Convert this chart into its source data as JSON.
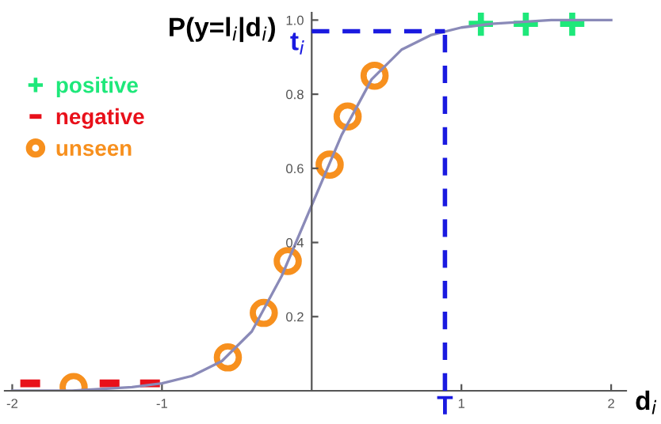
{
  "chart_data": {
    "type": "scatter",
    "ylabel": "P(y=l$_{i}$|d$_{i}$)",
    "xlabel": "d$_{i}$",
    "xlim": [
      -2.05,
      2.1
    ],
    "ylim": [
      0,
      1.02
    ],
    "xticks": [
      -2,
      -1,
      1,
      2
    ],
    "yticks": [
      0.2,
      0.4,
      0.6,
      0.8,
      {
        "value": 1.0,
        "label": "1.0"
      }
    ],
    "grid": false,
    "legend": "left",
    "series": [
      {
        "type": "line",
        "color": "#8a8ab8",
        "marker": "none",
        "x": [
          -2.0,
          -1.6,
          -1.2,
          -1.0,
          -0.8,
          -0.6,
          -0.4,
          -0.2,
          0.0,
          0.2,
          0.4,
          0.6,
          0.8,
          1.0,
          1.2,
          1.6,
          2.0
        ],
        "values": [
          0.0,
          0.0,
          0.01,
          0.02,
          0.04,
          0.08,
          0.16,
          0.31,
          0.5,
          0.69,
          0.84,
          0.92,
          0.96,
          0.98,
          0.99,
          1.0,
          1.0
        ]
      },
      {
        "name": "positive",
        "color": "#1ee87a",
        "marker": "cross",
        "x": [
          1.13,
          1.43,
          1.74
        ],
        "values": [
          0.99,
          0.99,
          0.99
        ]
      },
      {
        "name": "negative",
        "color": "#e8101a",
        "marker": "square",
        "x": [
          -1.88,
          -1.35,
          -1.08
        ],
        "values": [
          0.02,
          0.02,
          0.02
        ]
      },
      {
        "name": "unseen",
        "color": "#f7901e",
        "marker": "circle",
        "x": [
          -1.59,
          -0.56,
          -0.32,
          -0.16,
          0.12,
          0.24,
          0.42
        ],
        "values": [
          0.01,
          0.09,
          0.21,
          0.35,
          0.61,
          0.74,
          0.85
        ]
      }
    ],
    "ref_lines": [
      {
        "axis": "x",
        "value": 0.89,
        "label": "T",
        "color": "#1a1ae0",
        "line_style": "dashed"
      },
      {
        "axis": "y",
        "value": 0.97,
        "label": "t$_{i}$",
        "color": "#1a1ae0",
        "line_style": "dashed"
      }
    ]
  }
}
